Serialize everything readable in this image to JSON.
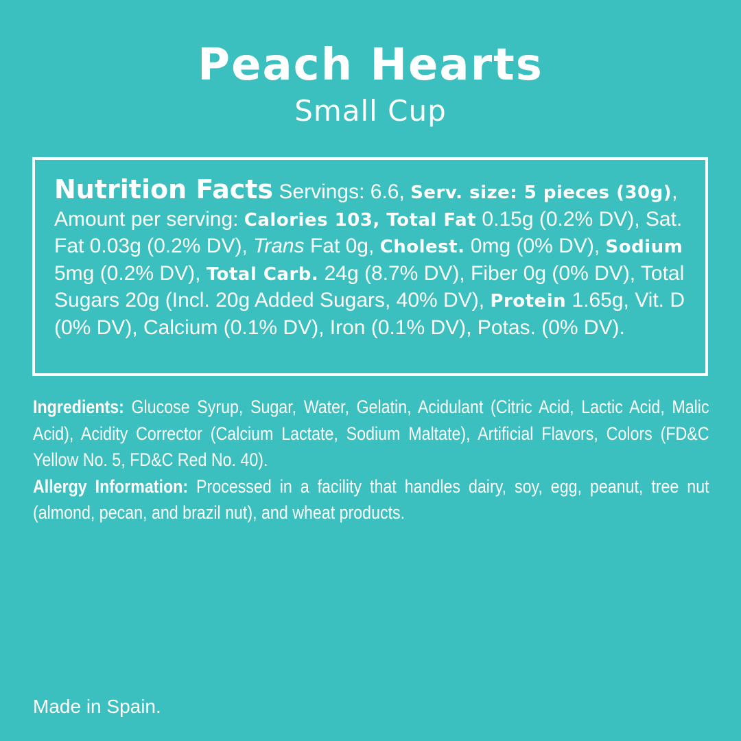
{
  "header": {
    "title": "Peach Hearts",
    "subtitle": "Small Cup"
  },
  "nutrition": {
    "heading": "Nutrition Facts",
    "servings": " Servings: 6.6, ",
    "serv_size_label": "Serv. size: 5 pieces (30g)",
    "amount_per_serving": ", Amount per serving: ",
    "calories_label": "Calories 103, Total Fat",
    "total_fat_value": " 0.15g (0.2% DV), Sat. Fat 0.03g (0.2% DV), ",
    "trans_label": "Trans",
    "trans_value": " Fat 0g, ",
    "cholest_label": "Cholest.",
    "cholest_value": " 0mg (0% DV), ",
    "sodium_label": "Sodium",
    "sodium_value": " 5mg (0.2% DV), ",
    "carb_label": "Total Carb.",
    "carb_value": " 24g (8.7% DV), Fiber 0g (0% DV), Total Sugars 20g (Incl. 20g Added Sugars, 40% DV), ",
    "protein_label": "Protein",
    "protein_value": " 1.65g, Vit. D (0% DV), Calcium (0.1% DV), Iron (0.1% DV), Potas. (0% DV)."
  },
  "ingredients": {
    "label": "Ingredients:",
    "text": " Glucose Syrup, Sugar, Water, Gelatin, Acidulant (Citric Acid, Lactic Acid, Malic Acid), Acidity Corrector (Calcium Lactate, Sodium Maltate), Artificial Flavors, Colors (FD&C Yellow No. 5, FD&C Red No. 40).",
    "allergy_label": "Allergy Information:",
    "allergy_text": " Processed in a facility that handles dairy, soy, egg, peanut, tree nut (almond, pecan, and brazil nut), and wheat products."
  },
  "footer": {
    "origin": "Made in Spain."
  },
  "colors": {
    "background": "#3bbfbf",
    "text": "#ffffff"
  }
}
